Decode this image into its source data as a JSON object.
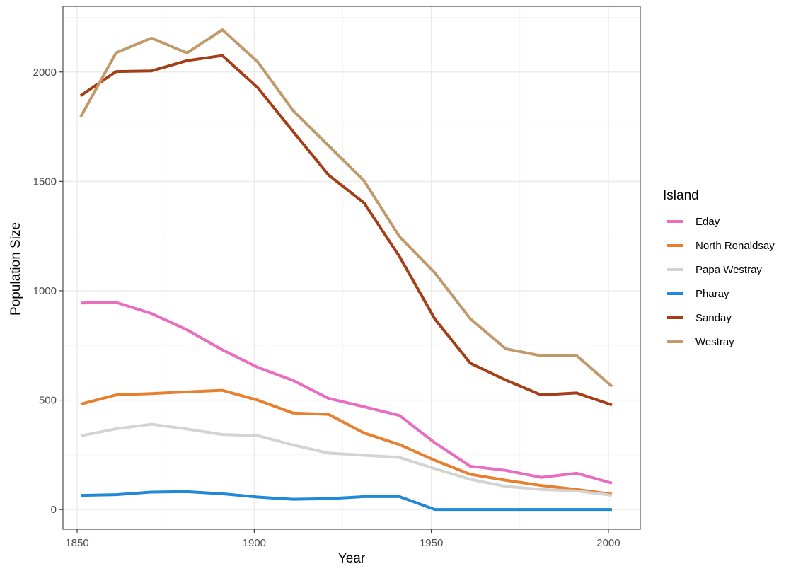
{
  "chart_data": {
    "type": "line",
    "title": "",
    "xlabel": "Year",
    "ylabel": "Population Size",
    "xlim": [
      1846,
      2009
    ],
    "ylim": [
      -90,
      2300
    ],
    "x_ticks": [
      1850,
      1900,
      1950,
      2000
    ],
    "y_ticks": [
      0,
      500,
      1000,
      1500,
      2000
    ],
    "grid": true,
    "legend": {
      "title": "Island",
      "placement": "right"
    },
    "x": [
      1851,
      1861,
      1871,
      1881,
      1891,
      1901,
      1911,
      1921,
      1931,
      1941,
      1951,
      1961,
      1971,
      1981,
      1991,
      2001
    ],
    "series": [
      {
        "name": "Eday",
        "color": "#E86DC0",
        "values": [
          944,
          947,
          896,
          822,
          730,
          650,
          590,
          508,
          470,
          430,
          305,
          198,
          179,
          147,
          166,
          121
        ]
      },
      {
        "name": "North Ronaldsay",
        "color": "#E87F2F",
        "values": [
          482,
          524,
          530,
          538,
          545,
          500,
          441,
          435,
          350,
          297,
          225,
          161,
          134,
          110,
          92,
          70
        ]
      },
      {
        "name": "Papa Westray",
        "color": "#D3D3D3",
        "values": [
          337,
          369,
          390,
          368,
          343,
          338,
          295,
          258,
          248,
          238,
          187,
          138,
          106,
          92,
          85,
          65
        ]
      },
      {
        "name": "Pharay",
        "color": "#2188D7",
        "values": [
          65,
          68,
          80,
          82,
          72,
          57,
          47,
          50,
          59,
          59,
          0,
          0,
          0,
          0,
          0,
          0
        ]
      },
      {
        "name": "Sanday",
        "color": "#A53E16",
        "values": [
          1892,
          2002,
          2005,
          2052,
          2075,
          1928,
          1727,
          1529,
          1402,
          1157,
          871,
          669,
          592,
          524,
          533,
          478
        ]
      },
      {
        "name": "Westray",
        "color": "#C19A6B",
        "values": [
          1795,
          2088,
          2155,
          2087,
          2193,
          2046,
          1823,
          1663,
          1503,
          1248,
          1082,
          872,
          735,
          703,
          704,
          563
        ]
      }
    ]
  }
}
